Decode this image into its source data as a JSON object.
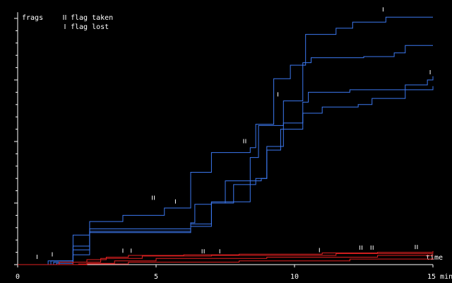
{
  "chart_data": {
    "type": "step",
    "y_label": "frags",
    "x_label": "time",
    "xlim": [
      0,
      15
    ],
    "xticks": [
      0,
      5,
      10,
      {
        "value": 15,
        "label": "15 min"
      }
    ],
    "ylim": [
      0,
      20.5
    ],
    "yticks": [
      0,
      1,
      2,
      3,
      4,
      5,
      6,
      7,
      8,
      9,
      10,
      11,
      12,
      13,
      14,
      15,
      16,
      17,
      18,
      19,
      20
    ],
    "series": [
      {
        "color": "#3c78f0",
        "x": [
          0,
          1.1,
          2.0,
          2.6,
          3.8,
          5.3,
          6.25,
          7.0,
          8.4,
          8.6,
          9.25,
          9.85,
          10.4,
          11.5,
          12.1,
          13.3,
          15
        ],
        "values": [
          0,
          0.3,
          2.4,
          3.5,
          4.0,
          4.6,
          7.5,
          9.1,
          9.5,
          11.4,
          15.1,
          16.2,
          18.7,
          19.2,
          19.7,
          20.1,
          20.1
        ]
      },
      {
        "color": "#3c78f0",
        "x": [
          0,
          1.2,
          2.0,
          2.6,
          6.25,
          6.4,
          7.0,
          8.4,
          8.7,
          9.6,
          10.3,
          10.6,
          12.5,
          13.6,
          14.0,
          15
        ],
        "values": [
          0,
          0.3,
          1.5,
          2.9,
          3.4,
          4.9,
          5.1,
          8.7,
          11.3,
          13.3,
          16.4,
          16.8,
          16.9,
          17.2,
          17.8,
          17.8
        ]
      },
      {
        "color": "#3c78f0",
        "x": [
          0,
          1.3,
          2.0,
          2.6,
          6.25,
          7.0,
          7.8,
          8.6,
          9.0,
          9.6,
          10.3,
          10.5,
          12.0,
          14.0,
          14.8,
          15
        ],
        "values": [
          0,
          0.2,
          1.2,
          2.7,
          3.3,
          5.0,
          6.5,
          7.0,
          9.6,
          11.5,
          13.2,
          14.0,
          14.2,
          14.6,
          15.0,
          15.3
        ]
      },
      {
        "color": "#3c78f0",
        "x": [
          0,
          1.4,
          2.0,
          2.6,
          6.25,
          7.0,
          7.5,
          8.8,
          9.0,
          9.5,
          10.3,
          11.0,
          12.3,
          12.8,
          14.0,
          15
        ],
        "values": [
          0,
          0.1,
          0.8,
          2.6,
          3.1,
          5.0,
          6.8,
          7.0,
          9.3,
          11.0,
          12.3,
          12.8,
          13.0,
          13.5,
          14.2,
          14.5
        ]
      },
      {
        "color": "#e02020",
        "x": [
          0,
          1.5,
          2.5,
          3.2,
          4.0,
          6.0,
          8.0,
          11.0,
          13.0,
          15
        ],
        "values": [
          0,
          0.2,
          0.4,
          0.6,
          0.75,
          0.8,
          0.85,
          0.95,
          1.0,
          1.1
        ]
      },
      {
        "color": "#e02020",
        "x": [
          0,
          2.0,
          3.0,
          4.5,
          7.0,
          11.5,
          15
        ],
        "values": [
          0,
          0.2,
          0.5,
          0.7,
          0.75,
          0.9,
          0.95
        ]
      },
      {
        "color": "#e02020",
        "x": [
          0,
          2.5,
          3.5,
          5.0,
          9.0,
          13.0,
          15
        ],
        "values": [
          0,
          0.1,
          0.3,
          0.5,
          0.6,
          0.75,
          0.8
        ]
      },
      {
        "color": "#e02020",
        "x": [
          0,
          2.2,
          4.0,
          8.0,
          12.0,
          15
        ],
        "values": [
          0,
          0.05,
          0.2,
          0.3,
          0.45,
          0.55
        ]
      }
    ],
    "flag_taken": {
      "name": "flag taken",
      "x": [
        4.9,
        6.7,
        8.2,
        12.4,
        12.8,
        14.4
      ],
      "values": [
        5.2,
        0.85,
        9.8,
        1.15,
        1.15,
        1.2
      ]
    },
    "flag_lost": {
      "name": "flag lost",
      "x": [
        0.7,
        1.25,
        3.8,
        4.1,
        5.7,
        7.3,
        9.4,
        10.9,
        13.2,
        14.9
      ],
      "values": [
        0.4,
        0.6,
        0.9,
        0.9,
        4.9,
        0.85,
        13.6,
        0.95,
        20.5,
        15.4
      ]
    }
  }
}
